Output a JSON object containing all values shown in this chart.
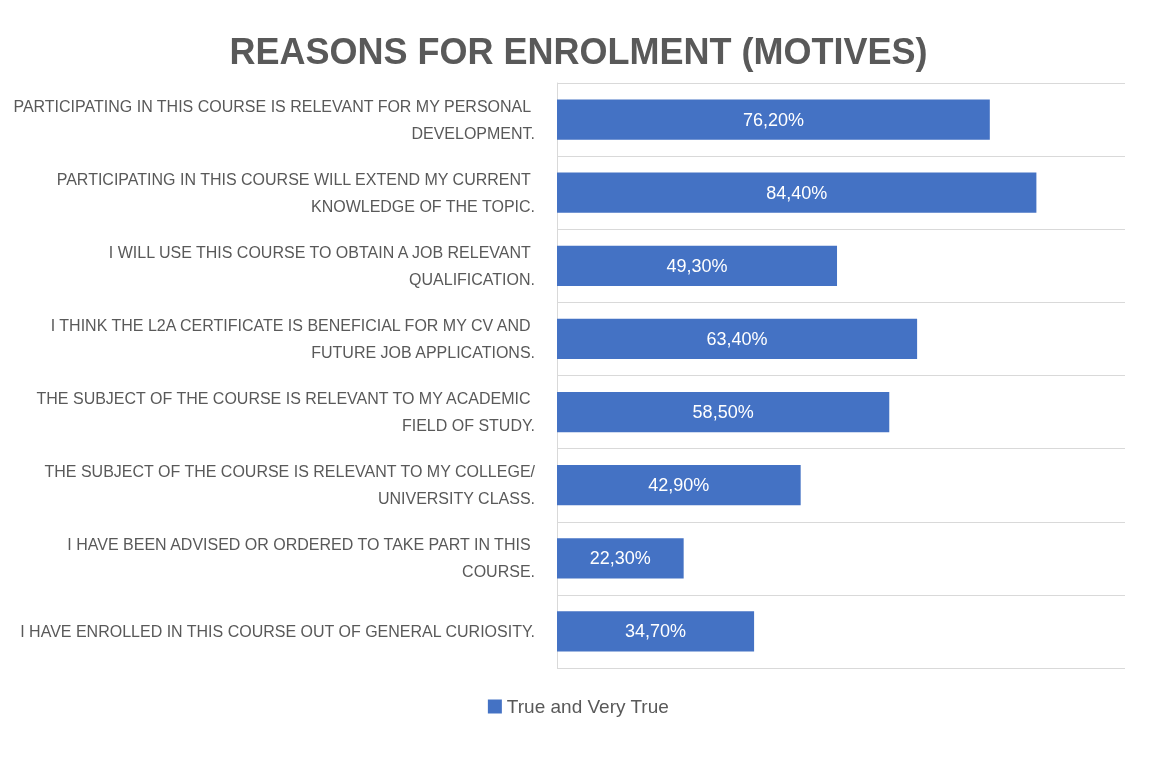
{
  "chart_data": {
    "type": "bar",
    "orientation": "horizontal",
    "title": "REASONS FOR ENROLMENT (MOTIVES)",
    "categories": [
      "PARTICIPATING IN THIS COURSE IS RELEVANT FOR MY PERSONAL DEVELOPMENT.",
      "PARTICIPATING IN THIS COURSE WILL EXTEND MY CURRENT KNOWLEDGE OF THE TOPIC.",
      "I WILL USE THIS COURSE TO OBTAIN A JOB RELEVANT QUALIFICATION.",
      "I THINK THE L2A CERTIFICATE IS BENEFICIAL FOR MY CV AND FUTURE JOB APPLICATIONS.",
      "THE SUBJECT OF THE COURSE IS RELEVANT TO MY ACADEMIC FIELD OF STUDY.",
      "THE SUBJECT OF THE COURSE IS RELEVANT TO MY COLLEGE/UNIVERSITY CLASS.",
      "I HAVE BEEN ADVISED OR ORDERED TO TAKE PART IN THIS COURSE.",
      "I HAVE ENROLLED IN THIS COURSE OUT OF GENERAL CURIOSITY."
    ],
    "series": [
      {
        "name": "True and Very True",
        "color": "#4472c4",
        "values": [
          76.2,
          84.4,
          49.3,
          63.4,
          58.5,
          42.9,
          22.3,
          34.7
        ],
        "value_labels": [
          "76,20%",
          "84,40%",
          "49,30%",
          "63,40%",
          "58,50%",
          "42,90%",
          "22,30%",
          "34,70%"
        ]
      }
    ],
    "xlim": [
      0,
      100
    ],
    "tick_labels": "y",
    "grid": "y",
    "legend": "bottom"
  }
}
